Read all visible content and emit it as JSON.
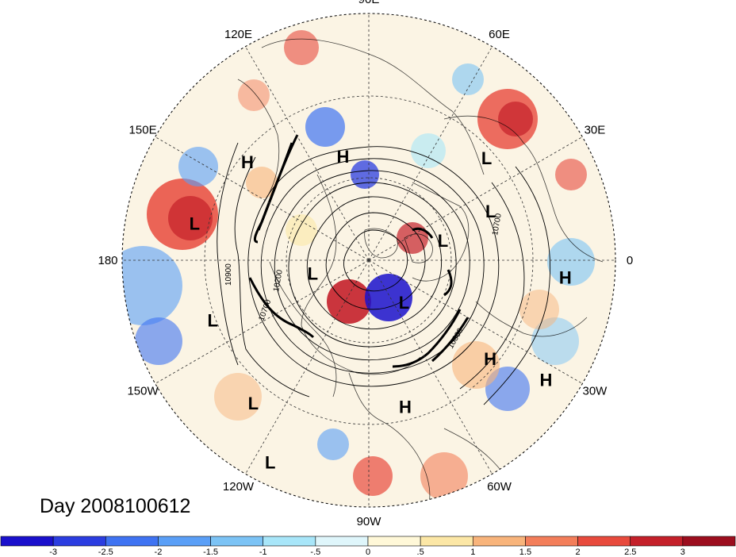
{
  "title": "Day 2008100612",
  "longitude_labels": [
    "90E",
    "60E",
    "30E",
    "0",
    "30W",
    "60W",
    "90W",
    "120W",
    "150W",
    "180",
    "150E",
    "120E"
  ],
  "pressure_centers": [
    {
      "type": "H",
      "lon": 104,
      "lat": 51
    },
    {
      "type": "L",
      "lon": 41,
      "lat": 33
    },
    {
      "type": "H",
      "lon": 141,
      "lat": 33
    },
    {
      "type": "L",
      "lon": 168,
      "lat": 25
    },
    {
      "type": "L",
      "lon": 22,
      "lat": 42
    },
    {
      "type": "L",
      "lon": 15,
      "lat": 62
    },
    {
      "type": "H",
      "lon": -5,
      "lat": 18
    },
    {
      "type": "L",
      "lon": -167,
      "lat": 69
    },
    {
      "type": "L",
      "lon": -50,
      "lat": 70
    },
    {
      "type": "L",
      "lon": -159,
      "lat": 29
    },
    {
      "type": "H",
      "lon": -34,
      "lat": 12
    },
    {
      "type": "H",
      "lon": -39,
      "lat": 33
    },
    {
      "type": "L",
      "lon": -129,
      "lat": 23
    },
    {
      "type": "H",
      "lon": -76,
      "lat": 35
    },
    {
      "type": "L",
      "lon": -116,
      "lat": 8
    }
  ],
  "contour_labels": [
    "10900",
    "10200",
    "10700",
    "10800",
    "10700"
  ],
  "colorbar": {
    "ticks": [
      "-3",
      "-2.5",
      "-2",
      "-1.5",
      "-1",
      "-.5",
      "0",
      ".5",
      "1",
      "1.5",
      "2",
      "2.5",
      "3"
    ],
    "colors": [
      "#1a10cc",
      "#2b3de0",
      "#3f73f2",
      "#5a9ff7",
      "#7cc3f5",
      "#a8e6f9",
      "#dff6fb",
      "#fff8d8",
      "#fce7a6",
      "#f8b47b",
      "#f37e5a",
      "#e84a3d",
      "#c4202a",
      "#9c0e1e"
    ]
  }
}
